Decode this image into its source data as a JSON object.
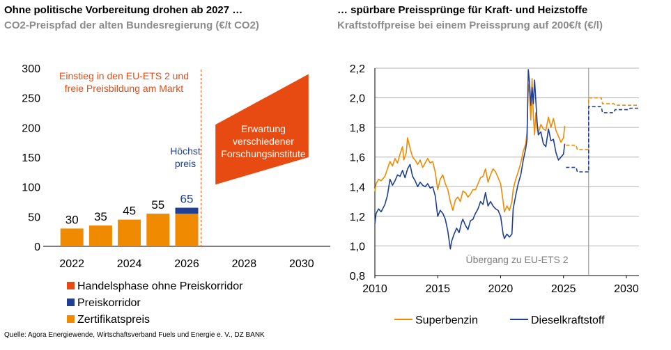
{
  "left_panel": {
    "title": "Ohne politische Vorbereitung drohen ab 2027 …",
    "subtitle": "CO2-Preispfad der alten Bundesregierung (€/t CO2)"
  },
  "right_panel": {
    "title": "… spürbare Preissprünge für Kraft- und Heizstoffe",
    "subtitle": "Kraftstoffpreise bei einem Preissprung auf 200€/t (€/l)"
  },
  "source": "Quelle: Agora Energiewende, Wirtschaftsverband Fuels und Energie e. V., DZ BANK",
  "colors": {
    "orange": "#f08a00",
    "navy": "#1f3f93",
    "red_orange": "#e84b12",
    "red_text": "#e84b12",
    "grid": "#b3b3b3",
    "label_gray": "#808080"
  },
  "chart_data": [
    {
      "type": "bar",
      "categories": [
        "2022",
        "2023",
        "2024",
        "2025",
        "2026"
      ],
      "series": [
        {
          "name": "Zertifikatspreis",
          "values": [
            30,
            35,
            45,
            55,
            55
          ]
        },
        {
          "name": "Preiskorridor",
          "values": [
            0,
            0,
            0,
            0,
            10
          ]
        },
        {
          "name": "Handelsphase ohne Preiskorridor",
          "range_band": {
            "x_start": 2027,
            "x_end": 2030,
            "lower_start": 104,
            "lower_end": 150,
            "upper_start": 205,
            "upper_end": 290
          }
        }
      ],
      "data_labels": [
        "30",
        "35",
        "45",
        "55",
        "65"
      ],
      "xlim": [
        2021,
        2031
      ],
      "ylim": [
        0,
        300
      ],
      "x_ticks": [
        "2022",
        "2024",
        "2026",
        "2028",
        "2030"
      ],
      "y_ticks": [
        "0",
        "50",
        "100",
        "150",
        "200",
        "250",
        "300"
      ],
      "annotations": {
        "ets": "Einstieg in den EU-ETS 2 und freie Preisbildung am Markt",
        "hoechstpreis": "Höchst preis",
        "erwartung": "Erwartung verschiedener Forschungsinstitute"
      },
      "legend": [
        "Handelsphase ohne Preiskorridor",
        "Preiskorridor",
        "Zertifikatspreis"
      ]
    },
    {
      "type": "line",
      "xlim": [
        2010,
        2031
      ],
      "ylim": [
        0.8,
        2.2
      ],
      "x_ticks": [
        "2010",
        "2015",
        "2020",
        "2025",
        "2030"
      ],
      "y_ticks": [
        "0,8",
        "1,0",
        "1,2",
        "1,4",
        "1,6",
        "1,8",
        "2,0",
        "2,2"
      ],
      "annotation": "Übergang zu EU-ETS 2",
      "transition_x": 2027,
      "series": [
        {
          "name": "Superbenzin",
          "points": [
            [
              2010.0,
              1.37
            ],
            [
              2010.1,
              1.42
            ],
            [
              2010.3,
              1.45
            ],
            [
              2010.5,
              1.44
            ],
            [
              2010.8,
              1.47
            ],
            [
              2011.0,
              1.52
            ],
            [
              2011.2,
              1.57
            ],
            [
              2011.4,
              1.54
            ],
            [
              2011.6,
              1.59
            ],
            [
              2011.8,
              1.56
            ],
            [
              2012.0,
              1.62
            ],
            [
              2012.2,
              1.67
            ],
            [
              2012.3,
              1.58
            ],
            [
              2012.5,
              1.63
            ],
            [
              2012.6,
              1.73
            ],
            [
              2012.8,
              1.66
            ],
            [
              2013.0,
              1.6
            ],
            [
              2013.2,
              1.58
            ],
            [
              2013.4,
              1.55
            ],
            [
              2013.6,
              1.58
            ],
            [
              2013.8,
              1.53
            ],
            [
              2014.0,
              1.56
            ],
            [
              2014.2,
              1.59
            ],
            [
              2014.4,
              1.56
            ],
            [
              2014.6,
              1.57
            ],
            [
              2014.8,
              1.5
            ],
            [
              2015.0,
              1.38
            ],
            [
              2015.2,
              1.45
            ],
            [
              2015.4,
              1.48
            ],
            [
              2015.6,
              1.42
            ],
            [
              2015.8,
              1.38
            ],
            [
              2016.0,
              1.3
            ],
            [
              2016.2,
              1.24
            ],
            [
              2016.4,
              1.31
            ],
            [
              2016.6,
              1.33
            ],
            [
              2016.8,
              1.3
            ],
            [
              2017.0,
              1.37
            ],
            [
              2017.2,
              1.36
            ],
            [
              2017.4,
              1.33
            ],
            [
              2017.6,
              1.35
            ],
            [
              2017.8,
              1.38
            ],
            [
              2018.0,
              1.38
            ],
            [
              2018.2,
              1.42
            ],
            [
              2018.4,
              1.46
            ],
            [
              2018.6,
              1.47
            ],
            [
              2018.8,
              1.52
            ],
            [
              2019.0,
              1.43
            ],
            [
              2019.2,
              1.48
            ],
            [
              2019.4,
              1.52
            ],
            [
              2019.6,
              1.5
            ],
            [
              2019.8,
              1.46
            ],
            [
              2020.0,
              1.42
            ],
            [
              2020.2,
              1.3
            ],
            [
              2020.3,
              1.23
            ],
            [
              2020.5,
              1.27
            ],
            [
              2020.7,
              1.24
            ],
            [
              2020.9,
              1.3
            ],
            [
              2021.0,
              1.38
            ],
            [
              2021.2,
              1.45
            ],
            [
              2021.4,
              1.5
            ],
            [
              2021.6,
              1.56
            ],
            [
              2021.8,
              1.64
            ],
            [
              2022.0,
              1.69
            ],
            [
              2022.1,
              1.77
            ],
            [
              2022.2,
              2.09
            ],
            [
              2022.3,
              2.03
            ],
            [
              2022.4,
              1.85
            ],
            [
              2022.5,
              2.13
            ],
            [
              2022.6,
              1.88
            ],
            [
              2022.7,
              1.75
            ],
            [
              2022.8,
              1.9
            ],
            [
              2022.9,
              1.8
            ],
            [
              2023.0,
              1.76
            ],
            [
              2023.2,
              1.82
            ],
            [
              2023.4,
              1.79
            ],
            [
              2023.6,
              1.78
            ],
            [
              2023.8,
              1.87
            ],
            [
              2024.0,
              1.8
            ],
            [
              2024.2,
              1.86
            ],
            [
              2024.4,
              1.78
            ],
            [
              2024.6,
              1.74
            ],
            [
              2024.8,
              1.7
            ],
            [
              2025.0,
              1.73
            ],
            [
              2025.1,
              1.81
            ]
          ],
          "projection": [
            [
              2025.2,
              1.68
            ],
            [
              2026.0,
              1.68
            ],
            [
              2026.1,
              1.65
            ],
            [
              2027.0,
              1.65
            ],
            [
              2027.0,
              2.0
            ],
            [
              2028.0,
              2.0
            ],
            [
              2028.1,
              1.96
            ],
            [
              2029.0,
              1.96
            ],
            [
              2029.1,
              1.95
            ],
            [
              2031.0,
              1.95
            ]
          ]
        },
        {
          "name": "Dieselkraftstoff",
          "points": [
            [
              2010.0,
              1.15
            ],
            [
              2010.1,
              1.22
            ],
            [
              2010.3,
              1.25
            ],
            [
              2010.5,
              1.23
            ],
            [
              2010.8,
              1.28
            ],
            [
              2011.0,
              1.34
            ],
            [
              2011.2,
              1.45
            ],
            [
              2011.4,
              1.41
            ],
            [
              2011.6,
              1.44
            ],
            [
              2011.8,
              1.48
            ],
            [
              2012.0,
              1.47
            ],
            [
              2012.2,
              1.51
            ],
            [
              2012.4,
              1.46
            ],
            [
              2012.6,
              1.52
            ],
            [
              2012.8,
              1.55
            ],
            [
              2013.0,
              1.47
            ],
            [
              2013.2,
              1.44
            ],
            [
              2013.4,
              1.4
            ],
            [
              2013.6,
              1.43
            ],
            [
              2013.8,
              1.41
            ],
            [
              2014.0,
              1.4
            ],
            [
              2014.2,
              1.42
            ],
            [
              2014.4,
              1.39
            ],
            [
              2014.6,
              1.4
            ],
            [
              2014.8,
              1.34
            ],
            [
              2015.0,
              1.2
            ],
            [
              2015.2,
              1.24
            ],
            [
              2015.4,
              1.22
            ],
            [
              2015.6,
              1.18
            ],
            [
              2015.8,
              1.1
            ],
            [
              2016.0,
              0.98
            ],
            [
              2016.1,
              1.03
            ],
            [
              2016.3,
              1.08
            ],
            [
              2016.5,
              1.12
            ],
            [
              2016.7,
              1.09
            ],
            [
              2016.9,
              1.16
            ],
            [
              2017.0,
              1.18
            ],
            [
              2017.2,
              1.14
            ],
            [
              2017.4,
              1.11
            ],
            [
              2017.6,
              1.17
            ],
            [
              2017.8,
              1.18
            ],
            [
              2018.0,
              1.22
            ],
            [
              2018.2,
              1.25
            ],
            [
              2018.4,
              1.3
            ],
            [
              2018.6,
              1.28
            ],
            [
              2018.8,
              1.36
            ],
            [
              2019.0,
              1.27
            ],
            [
              2019.2,
              1.3
            ],
            [
              2019.4,
              1.27
            ],
            [
              2019.6,
              1.25
            ],
            [
              2019.8,
              1.24
            ],
            [
              2020.0,
              1.2
            ],
            [
              2020.2,
              1.08
            ],
            [
              2020.3,
              1.05
            ],
            [
              2020.5,
              1.08
            ],
            [
              2020.7,
              1.06
            ],
            [
              2020.9,
              1.08
            ],
            [
              2021.0,
              1.25
            ],
            [
              2021.2,
              1.34
            ],
            [
              2021.4,
              1.42
            ],
            [
              2021.6,
              1.48
            ],
            [
              2021.8,
              1.58
            ],
            [
              2022.0,
              1.66
            ],
            [
              2022.1,
              1.72
            ],
            [
              2022.2,
              2.19
            ],
            [
              2022.3,
              2.1
            ],
            [
              2022.4,
              1.95
            ],
            [
              2022.5,
              2.07
            ],
            [
              2022.6,
              1.96
            ],
            [
              2022.7,
              2.12
            ],
            [
              2022.8,
              1.98
            ],
            [
              2022.9,
              1.84
            ],
            [
              2023.0,
              1.75
            ],
            [
              2023.2,
              1.77
            ],
            [
              2023.4,
              1.69
            ],
            [
              2023.6,
              1.67
            ],
            [
              2023.8,
              1.79
            ],
            [
              2024.0,
              1.71
            ],
            [
              2024.2,
              1.72
            ],
            [
              2024.4,
              1.63
            ],
            [
              2024.6,
              1.58
            ],
            [
              2024.8,
              1.6
            ],
            [
              2025.0,
              1.62
            ],
            [
              2025.1,
              1.69
            ]
          ],
          "projection": [
            [
              2025.2,
              1.53
            ],
            [
              2026.0,
              1.53
            ],
            [
              2026.1,
              1.5
            ],
            [
              2027.0,
              1.5
            ],
            [
              2027.0,
              1.94
            ],
            [
              2028.0,
              1.94
            ],
            [
              2028.1,
              1.9
            ],
            [
              2029.0,
              1.9
            ],
            [
              2029.1,
              1.92
            ],
            [
              2030.2,
              1.92
            ],
            [
              2030.3,
              1.93
            ],
            [
              2031.0,
              1.93
            ]
          ]
        }
      ],
      "legend": [
        "Superbenzin",
        "Dieselkraftstoff"
      ]
    }
  ]
}
